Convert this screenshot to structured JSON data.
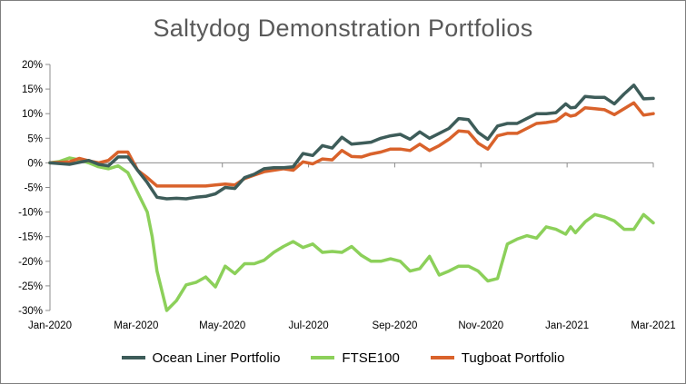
{
  "chart_data": {
    "type": "line",
    "title": "Saltydog Demonstration Portfolios",
    "xlabel": "",
    "ylabel": "",
    "x_tick_labels": [
      "Jan-2020",
      "Mar-2020",
      "May-2020",
      "Jul-2020",
      "Sep-2020",
      "Nov-2020",
      "Jan-2021",
      "Mar-2021"
    ],
    "y_tick_labels": [
      "-30%",
      "-25%",
      "-20%",
      "-15%",
      "-10%",
      "-5%",
      "0%",
      "5%",
      "10%",
      "15%",
      "20%"
    ],
    "ylim": [
      -30,
      20
    ],
    "xlim": [
      0,
      62
    ],
    "x_unit": "weeks since Jan-2020",
    "grid": false,
    "legend_position": "bottom",
    "series": [
      {
        "name": "Ocean Liner Portfolio",
        "color": "#3d5c59",
        "points": [
          [
            0,
            0
          ],
          [
            2,
            -0.3
          ],
          [
            4,
            0.5
          ],
          [
            5,
            -0.3
          ],
          [
            6,
            -0.6
          ],
          [
            7,
            1.2
          ],
          [
            8,
            1.2
          ],
          [
            9,
            -1.5
          ],
          [
            10,
            -4
          ],
          [
            11,
            -7
          ],
          [
            12,
            -7.3
          ],
          [
            13,
            -7.2
          ],
          [
            14,
            -7.3
          ],
          [
            15,
            -7
          ],
          [
            16,
            -6.8
          ],
          [
            17,
            -6.3
          ],
          [
            18,
            -5
          ],
          [
            19,
            -5.2
          ],
          [
            20,
            -3
          ],
          [
            21,
            -2.3
          ],
          [
            22,
            -1.2
          ],
          [
            23,
            -1
          ],
          [
            24,
            -1
          ],
          [
            25,
            -0.8
          ],
          [
            26,
            1.9
          ],
          [
            27,
            1.5
          ],
          [
            28,
            3.5
          ],
          [
            29,
            3
          ],
          [
            30,
            5.2
          ],
          [
            31,
            3.8
          ],
          [
            32,
            4
          ],
          [
            33,
            4.2
          ],
          [
            34,
            5
          ],
          [
            35,
            5.5
          ],
          [
            36,
            5.8
          ],
          [
            37,
            4.8
          ],
          [
            38,
            6.3
          ],
          [
            39,
            5
          ],
          [
            40,
            6
          ],
          [
            41,
            7
          ],
          [
            42,
            9
          ],
          [
            43,
            8.8
          ],
          [
            44,
            6.2
          ],
          [
            45,
            4.8
          ],
          [
            46,
            7.5
          ],
          [
            47,
            8
          ],
          [
            48,
            8
          ],
          [
            49,
            9
          ],
          [
            50,
            10
          ],
          [
            51,
            10
          ],
          [
            52,
            10.2
          ],
          [
            53,
            12
          ],
          [
            53.5,
            11.2
          ],
          [
            54,
            11.3
          ],
          [
            55,
            13.5
          ],
          [
            56,
            13.3
          ],
          [
            57,
            13.3
          ],
          [
            58,
            12
          ],
          [
            59,
            14
          ],
          [
            60,
            15.8
          ],
          [
            61,
            13
          ],
          [
            62,
            13.1
          ]
        ]
      },
      {
        "name": "FTSE100",
        "color": "#8cd05a",
        "points": [
          [
            0,
            0
          ],
          [
            1,
            0.3
          ],
          [
            2,
            1
          ],
          [
            3,
            0.6
          ],
          [
            4,
            0
          ],
          [
            5,
            -0.8
          ],
          [
            6,
            -1.2
          ],
          [
            7,
            -0.6
          ],
          [
            8,
            -2
          ],
          [
            9,
            -6
          ],
          [
            10,
            -10
          ],
          [
            10.5,
            -15
          ],
          [
            11,
            -22
          ],
          [
            12,
            -30
          ],
          [
            13,
            -28
          ],
          [
            14,
            -24.8
          ],
          [
            15,
            -24.3
          ],
          [
            16,
            -23.2
          ],
          [
            17,
            -25.2
          ],
          [
            18,
            -21
          ],
          [
            19,
            -22.5
          ],
          [
            20,
            -20.5
          ],
          [
            21,
            -20.5
          ],
          [
            22,
            -19.8
          ],
          [
            23,
            -18.2
          ],
          [
            24,
            -17
          ],
          [
            25,
            -16
          ],
          [
            26,
            -17.2
          ],
          [
            27,
            -16.5
          ],
          [
            28,
            -18.2
          ],
          [
            29,
            -18
          ],
          [
            30,
            -18.2
          ],
          [
            31,
            -17
          ],
          [
            32,
            -18.8
          ],
          [
            33,
            -20
          ],
          [
            34,
            -20
          ],
          [
            35,
            -19.5
          ],
          [
            36,
            -20
          ],
          [
            37,
            -22
          ],
          [
            38,
            -21.5
          ],
          [
            39,
            -19
          ],
          [
            40,
            -22.8
          ],
          [
            41,
            -22
          ],
          [
            42,
            -21
          ],
          [
            43,
            -21
          ],
          [
            44,
            -22
          ],
          [
            45,
            -24
          ],
          [
            46,
            -23.5
          ],
          [
            47,
            -16.5
          ],
          [
            48,
            -15.5
          ],
          [
            49,
            -14.8
          ],
          [
            50,
            -15.3
          ],
          [
            51,
            -13
          ],
          [
            52,
            -13.5
          ],
          [
            53,
            -14.5
          ],
          [
            53.5,
            -13
          ],
          [
            54,
            -14.2
          ],
          [
            55,
            -12
          ],
          [
            56,
            -10.5
          ],
          [
            57,
            -11
          ],
          [
            58,
            -11.8
          ],
          [
            59,
            -13.5
          ],
          [
            60,
            -13.5
          ],
          [
            61,
            -10.5
          ],
          [
            62,
            -12.2
          ]
        ]
      },
      {
        "name": "Tugboat Portfolio",
        "color": "#d9622b",
        "points": [
          [
            0,
            0
          ],
          [
            2,
            0.2
          ],
          [
            3,
            0.9
          ],
          [
            4,
            0.4
          ],
          [
            5,
            0
          ],
          [
            6,
            0.5
          ],
          [
            7,
            2.2
          ],
          [
            8,
            2.2
          ],
          [
            9,
            -1.5
          ],
          [
            10,
            -3
          ],
          [
            11,
            -4.7
          ],
          [
            12,
            -4.7
          ],
          [
            13,
            -4.7
          ],
          [
            14,
            -4.7
          ],
          [
            15,
            -4.7
          ],
          [
            16,
            -4.7
          ],
          [
            17,
            -4.5
          ],
          [
            18,
            -4.3
          ],
          [
            19,
            -4.5
          ],
          [
            20,
            -3.2
          ],
          [
            21,
            -2.5
          ],
          [
            22,
            -1.8
          ],
          [
            23,
            -1.5
          ],
          [
            24,
            -1.2
          ],
          [
            25,
            -1.5
          ],
          [
            26,
            0.2
          ],
          [
            27,
            -0.2
          ],
          [
            28,
            0.8
          ],
          [
            29,
            0.6
          ],
          [
            30,
            2.5
          ],
          [
            31,
            1.3
          ],
          [
            32,
            1.2
          ],
          [
            33,
            1.8
          ],
          [
            34,
            2.2
          ],
          [
            35,
            2.8
          ],
          [
            36,
            2.8
          ],
          [
            37,
            2.5
          ],
          [
            38,
            3.8
          ],
          [
            39,
            2.5
          ],
          [
            40,
            3.5
          ],
          [
            41,
            4.8
          ],
          [
            42,
            6.5
          ],
          [
            43,
            6.3
          ],
          [
            44,
            4
          ],
          [
            45,
            2.8
          ],
          [
            46,
            5.5
          ],
          [
            47,
            6
          ],
          [
            48,
            6
          ],
          [
            49,
            7
          ],
          [
            50,
            8
          ],
          [
            51,
            8.2
          ],
          [
            52,
            8.5
          ],
          [
            53,
            10
          ],
          [
            53.5,
            9.5
          ],
          [
            54,
            9.7
          ],
          [
            55,
            11.2
          ],
          [
            56,
            11
          ],
          [
            57,
            10.8
          ],
          [
            58,
            9.8
          ],
          [
            59,
            11
          ],
          [
            60,
            12.2
          ],
          [
            61,
            9.7
          ],
          [
            62,
            10
          ]
        ]
      }
    ]
  }
}
